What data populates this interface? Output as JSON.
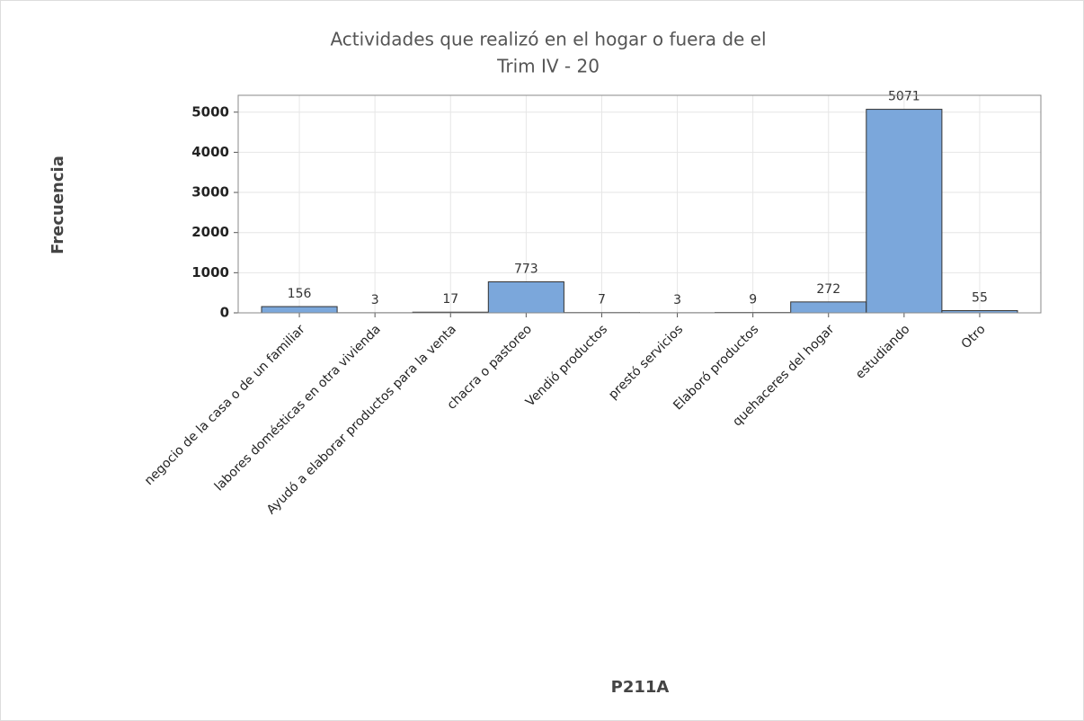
{
  "chart_data": {
    "type": "bar",
    "title": "Actividades que realizó en el hogar o fuera de el",
    "subtitle": "Trim IV - 20",
    "x_label": "P211A",
    "y_label": "Frecuencia",
    "categories": [
      "negocio de la casa o de un familiar",
      "labores domésticas en otra vivienda",
      "Ayudó a elaborar productos para la venta",
      "chacra o pastoreo",
      "Vendió productos",
      "prestó servicios",
      "Elaboró productos",
      "quehaceres del hogar",
      "estudiando",
      "Otro"
    ],
    "values": [
      156,
      3,
      17,
      773,
      7,
      3,
      9,
      272,
      5071,
      55
    ],
    "color": "#7ba7db",
    "ylim": [
      0,
      5420
    ],
    "yticks": [
      0,
      1000,
      2000,
      3000,
      4000,
      5000
    ],
    "grid": true
  }
}
